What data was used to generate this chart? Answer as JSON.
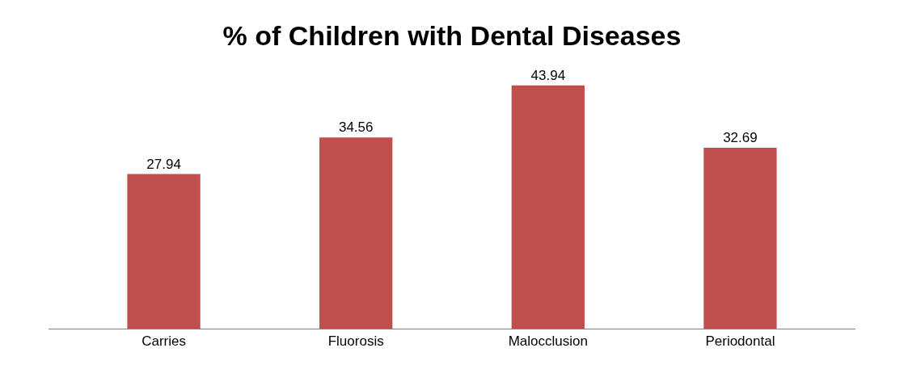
{
  "chart_data": {
    "type": "bar",
    "title": "% of Children with Dental Diseases",
    "categories": [
      "Carries",
      "Fluorosis",
      "Malocclusion",
      "Periodontal"
    ],
    "values": [
      27.94,
      34.56,
      43.94,
      32.69
    ],
    "color": "#c0504d",
    "data_labels": true
  }
}
